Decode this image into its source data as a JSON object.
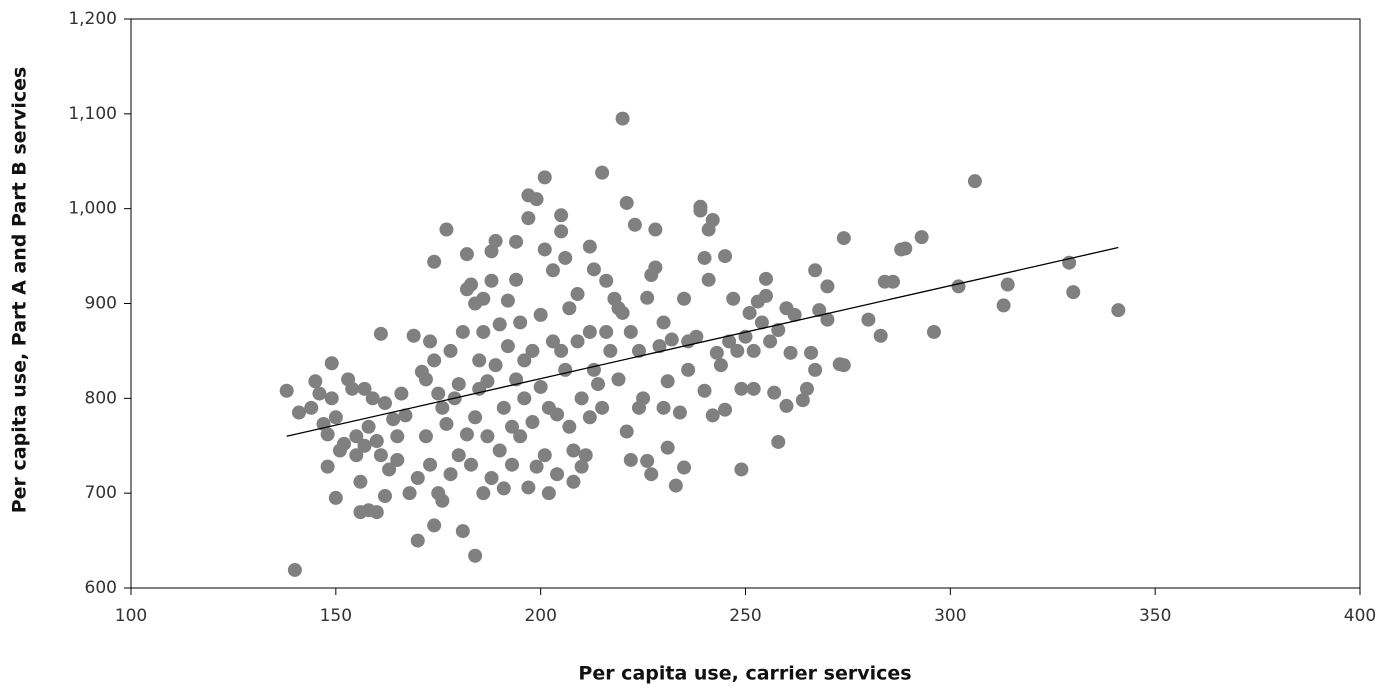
{
  "chart_data": {
    "type": "scatter",
    "xlabel": "Per capita use, carrier services",
    "ylabel": "Per capita use, Part A and Part B services",
    "xlim": [
      100,
      400
    ],
    "xticks": [
      100,
      150,
      200,
      250,
      300,
      350,
      400
    ],
    "ylim": [
      600,
      1200
    ],
    "yticks": [
      600,
      700,
      800,
      900,
      {
        "value": 1000,
        "label": "1,000"
      },
      {
        "value": 1100,
        "label": "1,100"
      },
      {
        "value": 1200,
        "label": "1,200"
      }
    ],
    "color": "#808080",
    "x": [
      138,
      140,
      141,
      144,
      145,
      146,
      147,
      148,
      148,
      149,
      149,
      150,
      150,
      151,
      152,
      153,
      154,
      155,
      155,
      156,
      156,
      157,
      157,
      158,
      158,
      159,
      160,
      160,
      161,
      161,
      162,
      162,
      163,
      164,
      165,
      165,
      166,
      167,
      168,
      169,
      170,
      170,
      171,
      172,
      172,
      173,
      173,
      174,
      174,
      174,
      175,
      175,
      176,
      176,
      177,
      177,
      178,
      178,
      179,
      180,
      180,
      181,
      181,
      182,
      182,
      182,
      183,
      183,
      184,
      184,
      184,
      185,
      185,
      186,
      186,
      186,
      187,
      187,
      188,
      188,
      188,
      189,
      189,
      190,
      190,
      191,
      191,
      192,
      192,
      193,
      193,
      194,
      194,
      194,
      195,
      195,
      196,
      196,
      197,
      197,
      197,
      198,
      198,
      199,
      199,
      200,
      200,
      201,
      201,
      201,
      202,
      202,
      203,
      203,
      204,
      204,
      205,
      205,
      205,
      206,
      206,
      207,
      207,
      208,
      208,
      209,
      209,
      210,
      210,
      211,
      212,
      212,
      212,
      213,
      213,
      214,
      215,
      215,
      216,
      216,
      217,
      218,
      219,
      219,
      220,
      220,
      221,
      221,
      222,
      222,
      223,
      224,
      224,
      225,
      226,
      226,
      227,
      227,
      228,
      228,
      229,
      230,
      230,
      231,
      231,
      232,
      233,
      234,
      235,
      235,
      236,
      236,
      238,
      239,
      239,
      240,
      240,
      241,
      241,
      242,
      242,
      243,
      244,
      245,
      245,
      246,
      247,
      248,
      249,
      249,
      250,
      251,
      252,
      252,
      253,
      254,
      255,
      255,
      256,
      257,
      258,
      258,
      260,
      260,
      261,
      262,
      264,
      265,
      266,
      267,
      267,
      268,
      270,
      270,
      273,
      274,
      274,
      280,
      283,
      284,
      286,
      288,
      289,
      293,
      296,
      302,
      306,
      313,
      314,
      329,
      330,
      341
    ],
    "values": [
      808,
      619,
      785,
      790,
      818,
      805,
      773,
      728,
      762,
      800,
      837,
      695,
      780,
      745,
      752,
      820,
      810,
      760,
      740,
      680,
      712,
      750,
      810,
      682,
      770,
      800,
      680,
      755,
      740,
      868,
      697,
      795,
      725,
      778,
      760,
      735,
      805,
      782,
      700,
      866,
      650,
      716,
      828,
      820,
      760,
      730,
      860,
      666,
      840,
      944,
      700,
      805,
      790,
      692,
      978,
      773,
      720,
      850,
      800,
      740,
      815,
      870,
      660,
      952,
      915,
      762,
      920,
      730,
      634,
      780,
      900,
      840,
      810,
      870,
      700,
      905,
      760,
      818,
      924,
      716,
      955,
      966,
      835,
      745,
      878,
      790,
      705,
      903,
      855,
      770,
      730,
      965,
      925,
      820,
      880,
      760,
      800,
      840,
      1014,
      990,
      706,
      850,
      775,
      1010,
      728,
      888,
      812,
      1033,
      957,
      740,
      700,
      790,
      935,
      860,
      783,
      720,
      993,
      976,
      850,
      948,
      830,
      895,
      770,
      745,
      712,
      910,
      860,
      800,
      728,
      740,
      960,
      870,
      780,
      936,
      830,
      815,
      1038,
      790,
      924,
      870,
      850,
      905,
      895,
      820,
      1095,
      890,
      1006,
      765,
      735,
      870,
      983,
      850,
      790,
      800,
      734,
      906,
      720,
      930,
      938,
      978,
      855,
      880,
      790,
      748,
      818,
      862,
      708,
      785,
      905,
      727,
      860,
      830,
      865,
      1002,
      998,
      948,
      808,
      978,
      925,
      988,
      782,
      848,
      835,
      950,
      788,
      860,
      905,
      850,
      810,
      725,
      865,
      890,
      810,
      850,
      902,
      880,
      926,
      908,
      860,
      806,
      872,
      754,
      792,
      895,
      848,
      888,
      798,
      810,
      848,
      935,
      830,
      893,
      883,
      918,
      836,
      969,
      835,
      883,
      866,
      923,
      923,
      957,
      958,
      970,
      870,
      918,
      1029,
      898,
      920,
      943,
      912,
      893
    ],
    "trend_line": {
      "x": [
        138,
        341
      ],
      "values": [
        760,
        959
      ],
      "color": "#000000"
    }
  }
}
